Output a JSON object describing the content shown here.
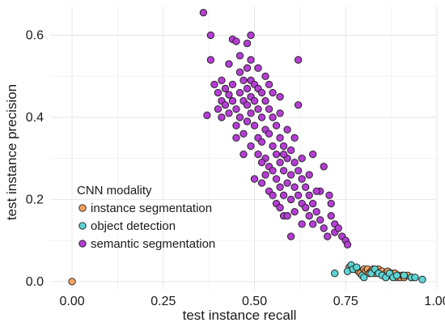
{
  "chart_data": {
    "type": "scatter",
    "title": "",
    "xlabel": "test instance recall",
    "ylabel": "test instance precision",
    "xlim": [
      -0.06,
      1.0
    ],
    "ylim": [
      -0.02,
      0.67
    ],
    "x_ticks": [
      0.0,
      0.25,
      0.5,
      0.75,
      1.0
    ],
    "x_tick_labels": [
      "0.00",
      "0.25",
      "0.50",
      "0.75",
      "1.00"
    ],
    "y_ticks": [
      0.0,
      0.2,
      0.4,
      0.6
    ],
    "y_tick_labels": [
      "0.0",
      "0.2",
      "0.4",
      "0.6"
    ],
    "grid": true,
    "legend": {
      "title": "CNN modality",
      "placement": "lower-left"
    },
    "series": [
      {
        "name": "instance segmentation",
        "color": "#f4a461",
        "points": [
          [
            0.0,
            0.0
          ],
          [
            0.76,
            0.035
          ],
          [
            0.775,
            0.03
          ],
          [
            0.785,
            0.025
          ],
          [
            0.79,
            0.02
          ],
          [
            0.8,
            0.03
          ],
          [
            0.805,
            0.025
          ],
          [
            0.81,
            0.03
          ],
          [
            0.815,
            0.02
          ],
          [
            0.82,
            0.025
          ],
          [
            0.825,
            0.03
          ],
          [
            0.83,
            0.02
          ],
          [
            0.835,
            0.025
          ],
          [
            0.84,
            0.03
          ],
          [
            0.845,
            0.02
          ],
          [
            0.85,
            0.025
          ],
          [
            0.855,
            0.015
          ],
          [
            0.86,
            0.02
          ],
          [
            0.865,
            0.025
          ],
          [
            0.87,
            0.015
          ],
          [
            0.875,
            0.02
          ],
          [
            0.88,
            0.015
          ],
          [
            0.885,
            0.02
          ],
          [
            0.89,
            0.01
          ],
          [
            0.895,
            0.015
          ],
          [
            0.9,
            0.01
          ],
          [
            0.905,
            0.015
          ],
          [
            0.91,
            0.01
          ],
          [
            0.92,
            0.015
          ],
          [
            0.93,
            0.01
          ]
        ]
      },
      {
        "name": "object detection",
        "color": "#5fd3d3",
        "points": [
          [
            0.72,
            0.02
          ],
          [
            0.755,
            0.025
          ],
          [
            0.765,
            0.04
          ],
          [
            0.77,
            0.03
          ],
          [
            0.78,
            0.035
          ],
          [
            0.795,
            0.015
          ],
          [
            0.8,
            0.01
          ],
          [
            0.82,
            0.02
          ],
          [
            0.83,
            0.03
          ],
          [
            0.84,
            0.02
          ],
          [
            0.85,
            0.015
          ],
          [
            0.86,
            0.01
          ],
          [
            0.87,
            0.02
          ],
          [
            0.88,
            0.01
          ],
          [
            0.89,
            0.015
          ],
          [
            0.91,
            0.015
          ],
          [
            0.93,
            0.01
          ],
          [
            0.94,
            0.01
          ],
          [
            0.96,
            0.005
          ]
        ]
      },
      {
        "name": "semantic segmentation",
        "color": "#b43ed3",
        "points": [
          [
            0.36,
            0.655
          ],
          [
            0.38,
            0.6
          ],
          [
            0.38,
            0.54
          ],
          [
            0.37,
            0.405
          ],
          [
            0.39,
            0.48
          ],
          [
            0.4,
            0.46
          ],
          [
            0.4,
            0.42
          ],
          [
            0.41,
            0.49
          ],
          [
            0.41,
            0.44
          ],
          [
            0.41,
            0.4
          ],
          [
            0.42,
            0.47
          ],
          [
            0.42,
            0.43
          ],
          [
            0.43,
            0.455
          ],
          [
            0.43,
            0.41
          ],
          [
            0.44,
            0.48
          ],
          [
            0.44,
            0.44
          ],
          [
            0.44,
            0.59
          ],
          [
            0.45,
            0.585
          ],
          [
            0.45,
            0.42
          ],
          [
            0.45,
            0.38
          ],
          [
            0.46,
            0.46
          ],
          [
            0.46,
            0.4
          ],
          [
            0.46,
            0.55
          ],
          [
            0.47,
            0.49
          ],
          [
            0.47,
            0.44
          ],
          [
            0.47,
            0.36
          ],
          [
            0.48,
            0.58
          ],
          [
            0.48,
            0.52
          ],
          [
            0.48,
            0.47
          ],
          [
            0.48,
            0.43
          ],
          [
            0.48,
            0.39
          ],
          [
            0.49,
            0.6
          ],
          [
            0.49,
            0.49
          ],
          [
            0.49,
            0.45
          ],
          [
            0.49,
            0.41
          ],
          [
            0.49,
            0.33
          ],
          [
            0.5,
            0.48
          ],
          [
            0.5,
            0.44
          ],
          [
            0.5,
            0.38
          ],
          [
            0.5,
            0.25
          ],
          [
            0.51,
            0.47
          ],
          [
            0.51,
            0.42
          ],
          [
            0.51,
            0.35
          ],
          [
            0.51,
            0.31
          ],
          [
            0.52,
            0.46
          ],
          [
            0.52,
            0.4
          ],
          [
            0.52,
            0.34
          ],
          [
            0.52,
            0.24
          ],
          [
            0.53,
            0.5
          ],
          [
            0.53,
            0.44
          ],
          [
            0.53,
            0.37
          ],
          [
            0.53,
            0.3
          ],
          [
            0.54,
            0.42
          ],
          [
            0.54,
            0.36
          ],
          [
            0.54,
            0.28
          ],
          [
            0.54,
            0.22
          ],
          [
            0.55,
            0.4
          ],
          [
            0.55,
            0.33
          ],
          [
            0.55,
            0.27
          ],
          [
            0.55,
            0.46
          ],
          [
            0.56,
            0.38
          ],
          [
            0.56,
            0.31
          ],
          [
            0.56,
            0.25
          ],
          [
            0.56,
            0.19
          ],
          [
            0.57,
            0.35
          ],
          [
            0.57,
            0.29
          ],
          [
            0.57,
            0.23
          ],
          [
            0.57,
            0.41
          ],
          [
            0.58,
            0.33
          ],
          [
            0.58,
            0.27
          ],
          [
            0.58,
            0.21
          ],
          [
            0.58,
            0.16
          ],
          [
            0.59,
            0.37
          ],
          [
            0.59,
            0.3
          ],
          [
            0.59,
            0.24
          ],
          [
            0.6,
            0.32
          ],
          [
            0.6,
            0.26
          ],
          [
            0.6,
            0.2
          ],
          [
            0.6,
            0.11
          ],
          [
            0.61,
            0.29
          ],
          [
            0.61,
            0.23
          ],
          [
            0.61,
            0.17
          ],
          [
            0.62,
            0.54
          ],
          [
            0.62,
            0.27
          ],
          [
            0.62,
            0.21
          ],
          [
            0.63,
            0.25
          ],
          [
            0.63,
            0.19
          ],
          [
            0.63,
            0.14
          ],
          [
            0.64,
            0.23
          ],
          [
            0.64,
            0.18
          ],
          [
            0.65,
            0.21
          ],
          [
            0.65,
            0.16
          ],
          [
            0.66,
            0.19
          ],
          [
            0.66,
            0.14
          ],
          [
            0.67,
            0.17
          ],
          [
            0.68,
            0.22
          ],
          [
            0.68,
            0.15
          ],
          [
            0.69,
            0.28
          ],
          [
            0.69,
            0.13
          ],
          [
            0.7,
            0.11
          ],
          [
            0.705,
            0.21
          ],
          [
            0.71,
            0.19
          ],
          [
            0.71,
            0.16
          ],
          [
            0.72,
            0.14
          ],
          [
            0.72,
            0.12
          ],
          [
            0.73,
            0.13
          ],
          [
            0.74,
            0.11
          ],
          [
            0.75,
            0.1
          ],
          [
            0.755,
            0.09
          ],
          [
            0.45,
            0.35
          ],
          [
            0.47,
            0.31
          ],
          [
            0.53,
            0.26
          ],
          [
            0.52,
            0.29
          ],
          [
            0.58,
            0.31
          ],
          [
            0.61,
            0.35
          ],
          [
            0.63,
            0.3
          ],
          [
            0.65,
            0.26
          ],
          [
            0.67,
            0.22
          ],
          [
            0.55,
            0.21
          ],
          [
            0.57,
            0.18
          ],
          [
            0.59,
            0.16
          ],
          [
            0.66,
            0.31
          ],
          [
            0.62,
            0.43
          ],
          [
            0.57,
            0.45
          ],
          [
            0.49,
            0.54
          ],
          [
            0.43,
            0.53
          ],
          [
            0.51,
            0.52
          ],
          [
            0.54,
            0.48
          ],
          [
            0.46,
            0.51
          ]
        ]
      }
    ]
  }
}
